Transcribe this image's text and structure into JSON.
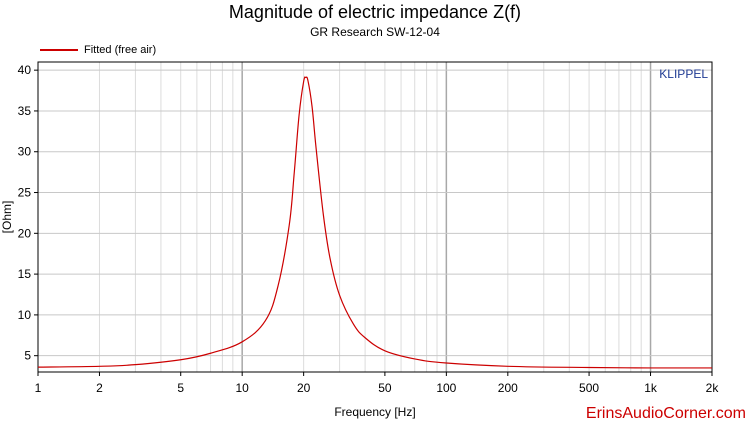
{
  "chart_data": {
    "type": "line",
    "title": "Magnitude of electric impedance Z(f)",
    "subtitle": "GR Research SW-12-04",
    "xlabel": "Frequency [Hz]",
    "ylabel": "[Ohm]",
    "x_scale": "log",
    "xlim": [
      1,
      2000
    ],
    "ylim": [
      3,
      41
    ],
    "x_ticks": [
      {
        "value": 1,
        "label": "1"
      },
      {
        "value": 2,
        "label": "2"
      },
      {
        "value": 5,
        "label": "5"
      },
      {
        "value": 10,
        "label": "10"
      },
      {
        "value": 20,
        "label": "20"
      },
      {
        "value": 50,
        "label": "50"
      },
      {
        "value": 100,
        "label": "100"
      },
      {
        "value": 200,
        "label": "200"
      },
      {
        "value": 500,
        "label": "500"
      },
      {
        "value": 1000,
        "label": "1k"
      },
      {
        "value": 2000,
        "label": "2k"
      }
    ],
    "y_ticks": [
      {
        "value": 5,
        "label": "5"
      },
      {
        "value": 10,
        "label": "10"
      },
      {
        "value": 15,
        "label": "15"
      },
      {
        "value": 20,
        "label": "20"
      },
      {
        "value": 25,
        "label": "25"
      },
      {
        "value": 30,
        "label": "30"
      },
      {
        "value": 35,
        "label": "35"
      },
      {
        "value": 40,
        "label": "40"
      }
    ],
    "grid": true,
    "legend_position": "top-left",
    "brand_label": "KLIPPEL",
    "series": [
      {
        "name": "Fitted (free air)",
        "color": "#cc0000",
        "x": [
          1,
          2,
          3,
          5,
          7,
          10,
          13,
          15,
          17,
          18,
          19,
          20,
          20.5,
          21,
          22,
          23,
          25,
          27,
          30,
          35,
          40,
          50,
          70,
          100,
          200,
          500,
          1000,
          2000
        ],
        "y": [
          3.6,
          3.7,
          3.9,
          4.5,
          5.3,
          6.7,
          9.3,
          13.6,
          21,
          27.5,
          34.5,
          38.6,
          39.1,
          38.7,
          35.5,
          30.5,
          22.2,
          16.8,
          12.4,
          8.9,
          7.2,
          5.6,
          4.6,
          4.1,
          3.7,
          3.55,
          3.5,
          3.5
        ]
      }
    ]
  },
  "watermark": "ErinsAudioCorner.com",
  "colors": {
    "curve": "#cc0000",
    "grid": "#c8c8c8",
    "frame": "#000000",
    "brand_text": "#1f3a93",
    "watermark": "#cc0000"
  }
}
